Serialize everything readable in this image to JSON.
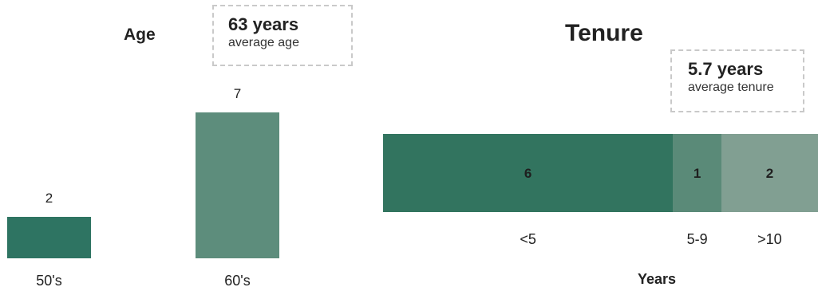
{
  "chart_data": [
    {
      "type": "bar",
      "title": "Age",
      "categories": [
        "50's",
        "60's"
      ],
      "values": [
        2,
        7
      ],
      "colors": [
        "#2e7462",
        "#5d8d7c"
      ],
      "callout": {
        "value": "63 years",
        "caption": "average age"
      }
    },
    {
      "type": "bar",
      "orientation": "horizontal-stacked",
      "title": "Tenure",
      "xlabel": "Years",
      "categories": [
        "<5",
        "5-9",
        ">10"
      ],
      "values": [
        6,
        1,
        2
      ],
      "colors": [
        "#32745f",
        "#5a8a78",
        "#819f92"
      ],
      "callout": {
        "value": "5.7 years",
        "caption": "average tenure"
      }
    }
  ]
}
